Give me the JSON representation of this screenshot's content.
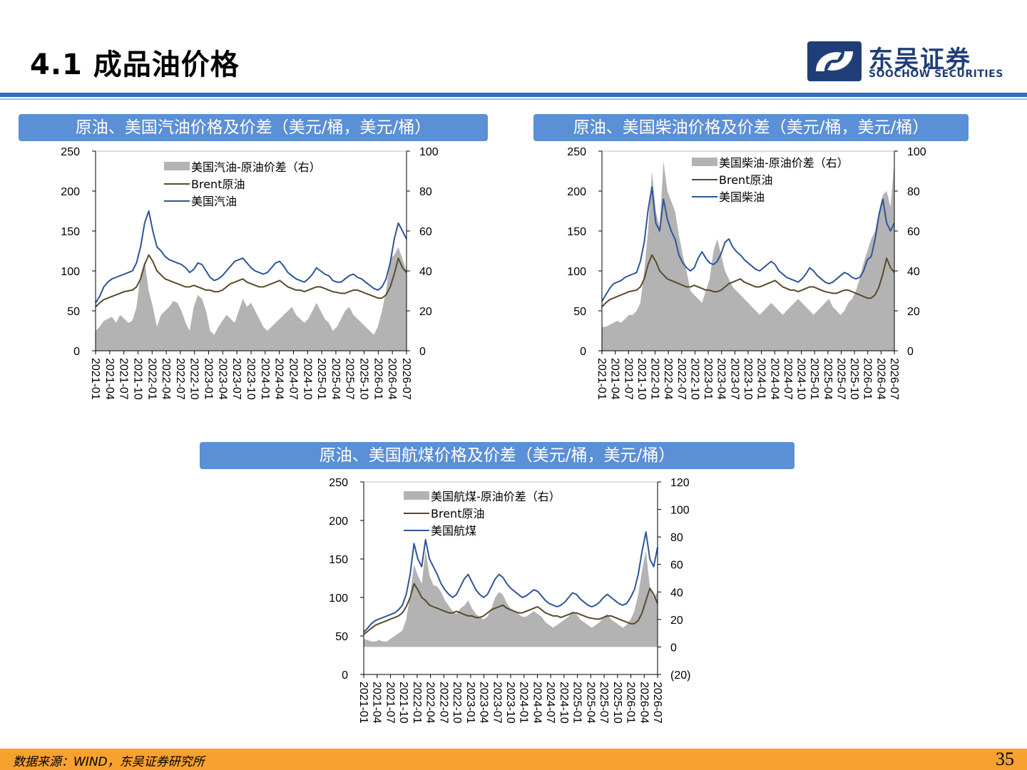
{
  "header": {
    "title": "4.1 成品油价格",
    "logo_cn": "东吴证券",
    "logo_en": "SOOCHOW SECURITIES"
  },
  "footer": {
    "source": "数据来源：WIND，东吴证券研究所",
    "page_number": "35"
  },
  "colors": {
    "spread_fill": "#b3b3b3",
    "brent_line": "#5a4a2a",
    "product_line": "#2f5597",
    "banner": "#5b8fd6",
    "negative_tick": "#c00000"
  },
  "chart_data": [
    {
      "type": "area",
      "title": "原油、美国汽油价格及价差（美元/桶，美元/桶）",
      "x_ticks": [
        "2021-01",
        "2021-04",
        "2021-07",
        "2021-10",
        "2022-01",
        "2022-04",
        "2022-07",
        "2022-10",
        "2023-01",
        "2023-04",
        "2023-07",
        "2023-10",
        "2024-01",
        "2024-04",
        "2024-07",
        "2024-10",
        "2025-01",
        "2025-04",
        "2025-07",
        "2025-10",
        "2026-01",
        "2026-04",
        "2026-07"
      ],
      "y_left_ticks": [
        "250",
        "200",
        "150",
        "100",
        "50",
        "0"
      ],
      "y_right_ticks": [
        "100",
        "80",
        "60",
        "40",
        "20",
        "0"
      ],
      "ylim_left": [
        0,
        250
      ],
      "ylim_right": [
        0,
        100
      ],
      "legend": [
        "美国汽油-原油价差（右）",
        "Brent原油",
        "美国汽油"
      ],
      "series": [
        {
          "name": "美国汽油-原油价差（右）",
          "axis": "right",
          "kind": "area",
          "values": [
            10,
            12,
            15,
            16,
            17,
            14,
            18,
            16,
            14,
            15,
            22,
            38,
            45,
            30,
            22,
            12,
            18,
            20,
            22,
            25,
            24,
            20,
            14,
            10,
            22,
            28,
            26,
            20,
            10,
            8,
            12,
            15,
            18,
            16,
            14,
            20,
            26,
            22,
            24,
            20,
            16,
            12,
            10,
            12,
            14,
            16,
            18,
            20,
            22,
            18,
            16,
            14,
            16,
            20,
            24,
            20,
            16,
            14,
            10,
            12,
            16,
            20,
            22,
            18,
            16,
            14,
            12,
            10,
            8,
            12,
            20,
            30,
            46,
            48,
            52,
            46,
            40
          ]
        },
        {
          "name": "Brent原油",
          "axis": "left",
          "kind": "line",
          "values": [
            55,
            60,
            64,
            66,
            68,
            70,
            72,
            74,
            75,
            76,
            80,
            90,
            108,
            120,
            112,
            100,
            95,
            90,
            88,
            86,
            84,
            82,
            80,
            80,
            82,
            80,
            78,
            76,
            76,
            74,
            74,
            76,
            80,
            84,
            86,
            88,
            90,
            86,
            84,
            82,
            80,
            80,
            82,
            84,
            86,
            88,
            84,
            80,
            78,
            76,
            76,
            74,
            76,
            78,
            80,
            80,
            78,
            76,
            74,
            73,
            72,
            72,
            74,
            76,
            76,
            74,
            72,
            70,
            68,
            66,
            66,
            70,
            80,
            96,
            116,
            104,
            98
          ]
        },
        {
          "name": "美国汽油",
          "axis": "left",
          "kind": "line",
          "values": [
            60,
            68,
            80,
            86,
            90,
            92,
            94,
            96,
            98,
            100,
            110,
            130,
            160,
            175,
            150,
            130,
            125,
            118,
            114,
            112,
            110,
            108,
            104,
            98,
            102,
            110,
            108,
            100,
            92,
            88,
            90,
            94,
            100,
            106,
            112,
            114,
            116,
            110,
            104,
            100,
            98,
            96,
            98,
            104,
            110,
            112,
            106,
            98,
            94,
            90,
            88,
            86,
            90,
            96,
            104,
            100,
            96,
            94,
            88,
            86,
            86,
            90,
            94,
            96,
            92,
            90,
            86,
            82,
            78,
            76,
            80,
            90,
            110,
            140,
            160,
            150,
            140
          ]
        }
      ]
    },
    {
      "type": "area",
      "title": "原油、美国柴油价格及价差（美元/桶，美元/桶）",
      "x_ticks": [
        "2021-01",
        "2021-04",
        "2021-07",
        "2021-10",
        "2022-01",
        "2022-04",
        "2022-07",
        "2022-10",
        "2023-01",
        "2023-04",
        "2023-07",
        "2023-10",
        "2024-01",
        "2024-04",
        "2024-07",
        "2024-10",
        "2025-01",
        "2025-04",
        "2025-07",
        "2025-10",
        "2026-01",
        "2026-04",
        "2026-07"
      ],
      "y_left_ticks": [
        "250",
        "200",
        "150",
        "100",
        "50",
        "0"
      ],
      "y_right_ticks": [
        "100",
        "80",
        "60",
        "40",
        "20",
        "0"
      ],
      "ylim_left": [
        0,
        250
      ],
      "ylim_right": [
        0,
        100
      ],
      "legend": [
        "美国柴油-原油价差（右）",
        "Brent原油",
        "美国柴油"
      ],
      "series": [
        {
          "name": "美国柴油-原油价差（右）",
          "axis": "right",
          "kind": "area",
          "values": [
            12,
            12,
            13,
            14,
            15,
            14,
            16,
            18,
            18,
            20,
            24,
            40,
            60,
            90,
            70,
            62,
            95,
            80,
            75,
            70,
            58,
            48,
            40,
            30,
            28,
            26,
            24,
            30,
            36,
            50,
            56,
            48,
            40,
            36,
            32,
            30,
            28,
            26,
            24,
            22,
            20,
            18,
            20,
            22,
            24,
            22,
            20,
            18,
            20,
            22,
            24,
            26,
            24,
            22,
            20,
            18,
            20,
            22,
            24,
            26,
            22,
            20,
            18,
            20,
            24,
            26,
            30,
            36,
            44,
            50,
            56,
            60,
            70,
            78,
            80,
            72,
            95
          ]
        },
        {
          "name": "Brent原油",
          "axis": "left",
          "kind": "line",
          "values": [
            55,
            60,
            64,
            66,
            68,
            70,
            72,
            74,
            75,
            76,
            80,
            90,
            108,
            120,
            112,
            100,
            95,
            90,
            88,
            86,
            84,
            82,
            80,
            80,
            82,
            80,
            78,
            76,
            76,
            74,
            74,
            76,
            80,
            84,
            86,
            88,
            90,
            86,
            84,
            82,
            80,
            80,
            82,
            84,
            86,
            88,
            84,
            80,
            78,
            76,
            76,
            74,
            76,
            78,
            80,
            80,
            78,
            76,
            74,
            73,
            72,
            72,
            74,
            76,
            76,
            74,
            72,
            70,
            68,
            66,
            66,
            70,
            80,
            96,
            116,
            104,
            98
          ]
        },
        {
          "name": "美国柴油",
          "axis": "left",
          "kind": "line",
          "values": [
            62,
            70,
            78,
            84,
            86,
            88,
            92,
            94,
            96,
            98,
            112,
            136,
            176,
            205,
            160,
            150,
            190,
            165,
            150,
            140,
            120,
            110,
            104,
            100,
            104,
            116,
            124,
            116,
            110,
            108,
            112,
            122,
            136,
            140,
            130,
            124,
            120,
            114,
            110,
            106,
            102,
            100,
            104,
            108,
            112,
            108,
            100,
            96,
            92,
            90,
            88,
            86,
            90,
            96,
            104,
            100,
            94,
            90,
            86,
            84,
            86,
            90,
            94,
            98,
            96,
            92,
            90,
            92,
            100,
            114,
            118,
            140,
            170,
            190,
            160,
            150,
            160
          ]
        }
      ]
    },
    {
      "type": "area",
      "title": "原油、美国航煤价格及价差（美元/桶，美元/桶）",
      "x_ticks": [
        "2021-01",
        "2021-04",
        "2021-07",
        "2021-10",
        "2022-01",
        "2022-04",
        "2022-07",
        "2022-10",
        "2023-01",
        "2023-04",
        "2023-07",
        "2023-10",
        "2024-01",
        "2024-04",
        "2024-07",
        "2024-10",
        "2025-01",
        "2025-04",
        "2025-07",
        "2025-10",
        "2026-01",
        "2026-04",
        "2026-07"
      ],
      "y_left_ticks": [
        "250",
        "200",
        "150",
        "100",
        "50",
        "0"
      ],
      "y_right_ticks": [
        "120",
        "100",
        "80",
        "60",
        "40",
        "20",
        "0",
        "(20)"
      ],
      "ylim_left": [
        0,
        250
      ],
      "ylim_right": [
        -20,
        120
      ],
      "legend": [
        "美国航煤-原油价差（右）",
        "Brent原油",
        "美国航煤"
      ],
      "series": [
        {
          "name": "美国航煤-原油价差（右）",
          "axis": "right",
          "kind": "area",
          "values": [
            6,
            5,
            4,
            4,
            5,
            4,
            4,
            6,
            8,
            10,
            12,
            20,
            38,
            60,
            52,
            46,
            70,
            52,
            45,
            44,
            40,
            34,
            30,
            26,
            24,
            28,
            30,
            34,
            28,
            24,
            22,
            20,
            22,
            28,
            36,
            40,
            38,
            32,
            28,
            26,
            24,
            22,
            22,
            24,
            26,
            24,
            22,
            18,
            16,
            14,
            16,
            18,
            20,
            22,
            26,
            24,
            20,
            18,
            16,
            14,
            16,
            18,
            22,
            24,
            20,
            18,
            16,
            14,
            16,
            20,
            26,
            38,
            56,
            70,
            44,
            36,
            40
          ]
        },
        {
          "name": "Brent原油",
          "axis": "left",
          "kind": "line",
          "values": [
            52,
            56,
            60,
            64,
            66,
            68,
            70,
            72,
            74,
            76,
            80,
            88,
            100,
            118,
            110,
            100,
            96,
            90,
            88,
            86,
            84,
            82,
            80,
            80,
            82,
            80,
            78,
            76,
            76,
            74,
            74,
            76,
            80,
            84,
            86,
            88,
            90,
            86,
            84,
            82,
            80,
            80,
            82,
            84,
            86,
            88,
            84,
            80,
            78,
            76,
            76,
            74,
            76,
            78,
            80,
            80,
            78,
            76,
            74,
            73,
            72,
            72,
            74,
            76,
            76,
            74,
            72,
            70,
            68,
            66,
            66,
            70,
            80,
            96,
            112,
            104,
            92
          ]
        },
        {
          "name": "美国航煤",
          "axis": "left",
          "kind": "line",
          "values": [
            55,
            60,
            66,
            70,
            72,
            74,
            76,
            78,
            80,
            84,
            90,
            104,
            130,
            170,
            150,
            140,
            175,
            150,
            140,
            130,
            118,
            110,
            104,
            100,
            104,
            114,
            124,
            130,
            120,
            110,
            104,
            100,
            104,
            114,
            124,
            130,
            126,
            118,
            112,
            108,
            104,
            100,
            102,
            106,
            110,
            108,
            102,
            96,
            92,
            90,
            88,
            90,
            94,
            100,
            106,
            104,
            98,
            94,
            90,
            88,
            90,
            94,
            100,
            104,
            100,
            96,
            92,
            90,
            92,
            100,
            110,
            130,
            160,
            185,
            150,
            140,
            165
          ]
        }
      ]
    }
  ]
}
